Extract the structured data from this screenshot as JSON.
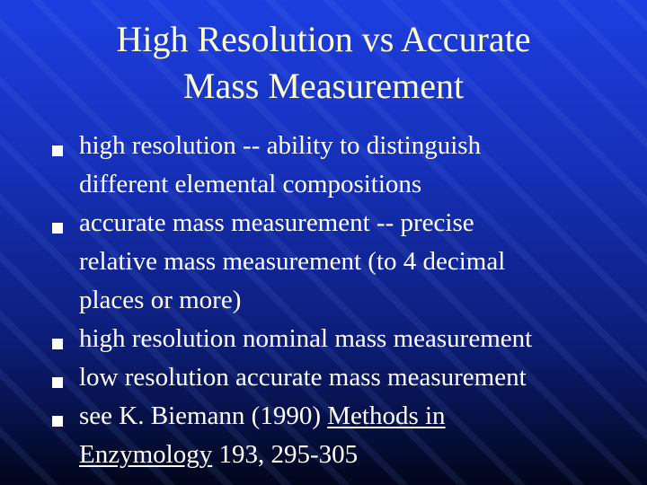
{
  "title": {
    "lines": [
      "High Resolution vs Accurate",
      "Mass Measurement"
    ]
  },
  "bullets": [
    {
      "lines": [
        [
          {
            "text": "high resolution -- ability to distinguish"
          }
        ],
        [
          {
            "text": "different elemental compositions"
          }
        ]
      ]
    },
    {
      "lines": [
        [
          {
            "text": "accurate mass measurement -- precise"
          }
        ],
        [
          {
            "text": "relative mass measurement (to 4 decimal"
          }
        ],
        [
          {
            "text": "places or more)"
          }
        ]
      ]
    },
    {
      "lines": [
        [
          {
            "text": "high resolution nominal mass measurement"
          }
        ]
      ]
    },
    {
      "lines": [
        [
          {
            "text": "low resolution accurate mass measurement"
          }
        ]
      ]
    },
    {
      "lines": [
        [
          {
            "text": "see K. Biemann (1990) "
          },
          {
            "text": "Methods in",
            "underline": true
          }
        ],
        [
          {
            "text": "Enzymology",
            "underline": true
          },
          {
            "text": " 193, 295-305"
          }
        ]
      ]
    }
  ]
}
